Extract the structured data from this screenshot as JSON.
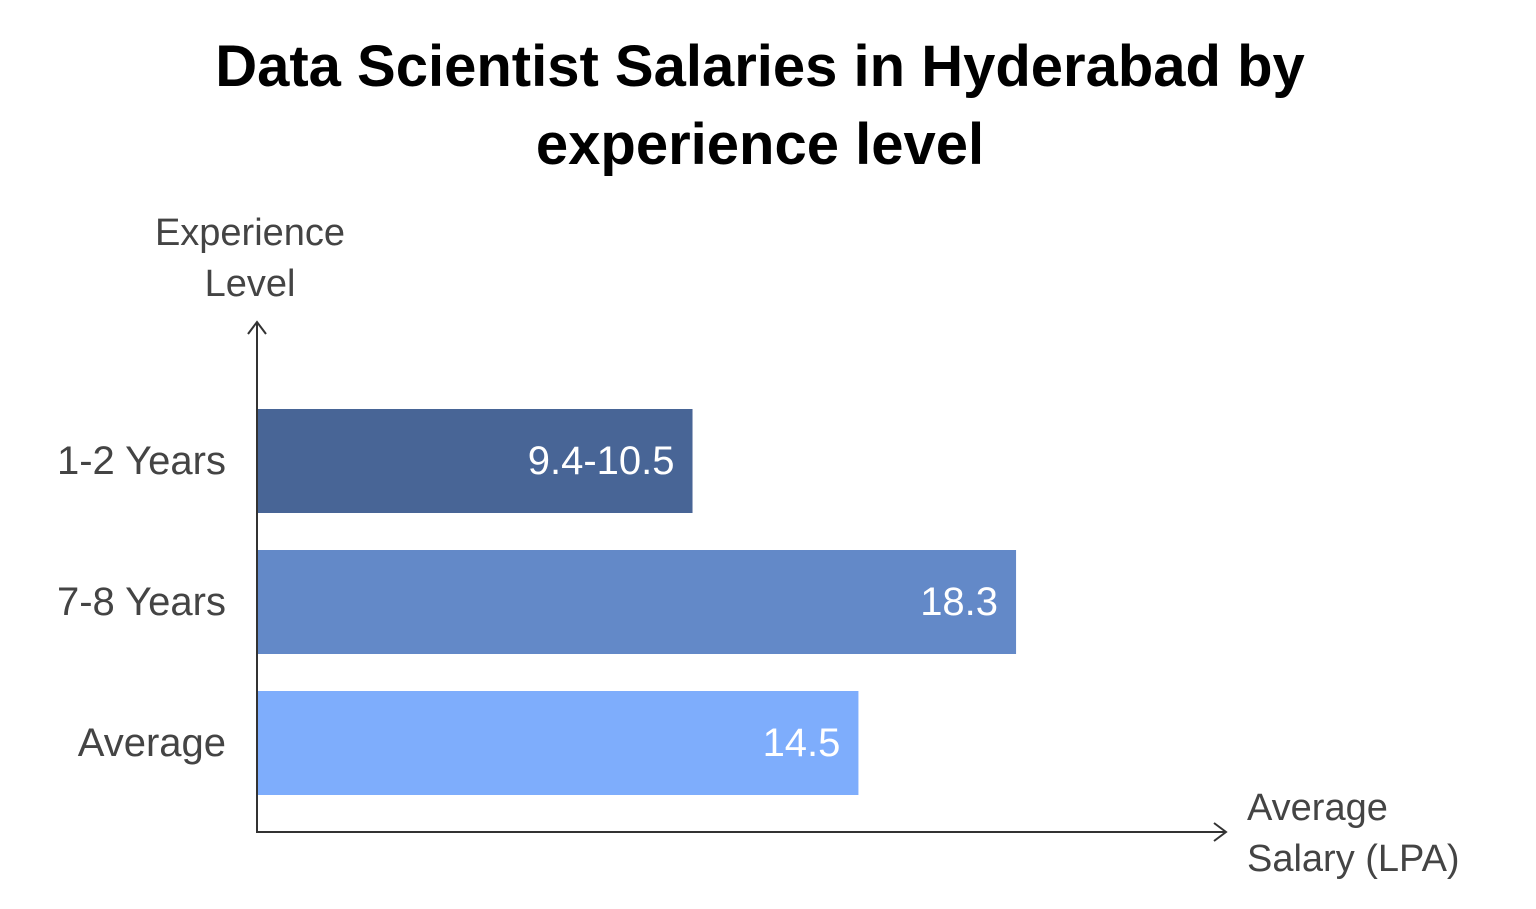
{
  "chart_data": {
    "type": "bar",
    "orientation": "horizontal",
    "title_lines": [
      "Data Scientist Salaries in Hyderabad by",
      "experience level"
    ],
    "ylabel_lines": [
      "Experience",
      "Level"
    ],
    "xlabel_lines": [
      "Average",
      "Salary (LPA)"
    ],
    "categories": [
      "1-2 Years",
      "7-8 Years",
      "Average"
    ],
    "values": [
      10.5,
      18.3,
      14.5
    ],
    "data_labels": [
      "9.4-10.5",
      "18.3",
      "14.5"
    ],
    "colors": [
      "#486596",
      "#6389c8",
      "#7eadfc"
    ],
    "xlim": [
      0,
      23
    ],
    "grid": false,
    "legend": "none"
  },
  "colors": {
    "axis": "#333333",
    "axis_label_text": "#444444",
    "data_label_text": "#ffffff"
  }
}
